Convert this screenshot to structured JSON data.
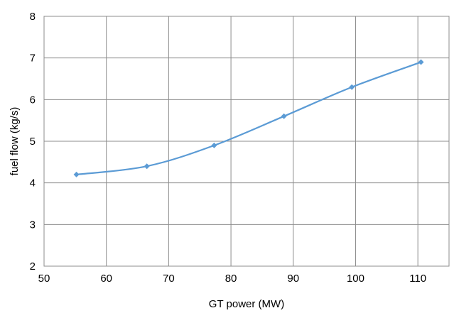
{
  "chart_data": {
    "type": "line",
    "title": "",
    "xlabel": "GT power (MW)",
    "ylabel": "fuel flow (kg/s)",
    "xlim": [
      50,
      115
    ],
    "ylim": [
      2,
      8
    ],
    "x_ticks": [
      50,
      60,
      70,
      80,
      90,
      100,
      110
    ],
    "y_ticks": [
      2,
      3,
      4,
      5,
      6,
      7,
      8
    ],
    "grid": true,
    "legend": "none",
    "series": [
      {
        "color": "#5b9bd5",
        "marker": "diamond",
        "smooth": true,
        "x": [
          55.2,
          66.5,
          77.3,
          88.5,
          99.4,
          110.5
        ],
        "y": [
          4.2,
          4.4,
          4.9,
          5.6,
          6.3,
          6.9
        ]
      }
    ]
  }
}
